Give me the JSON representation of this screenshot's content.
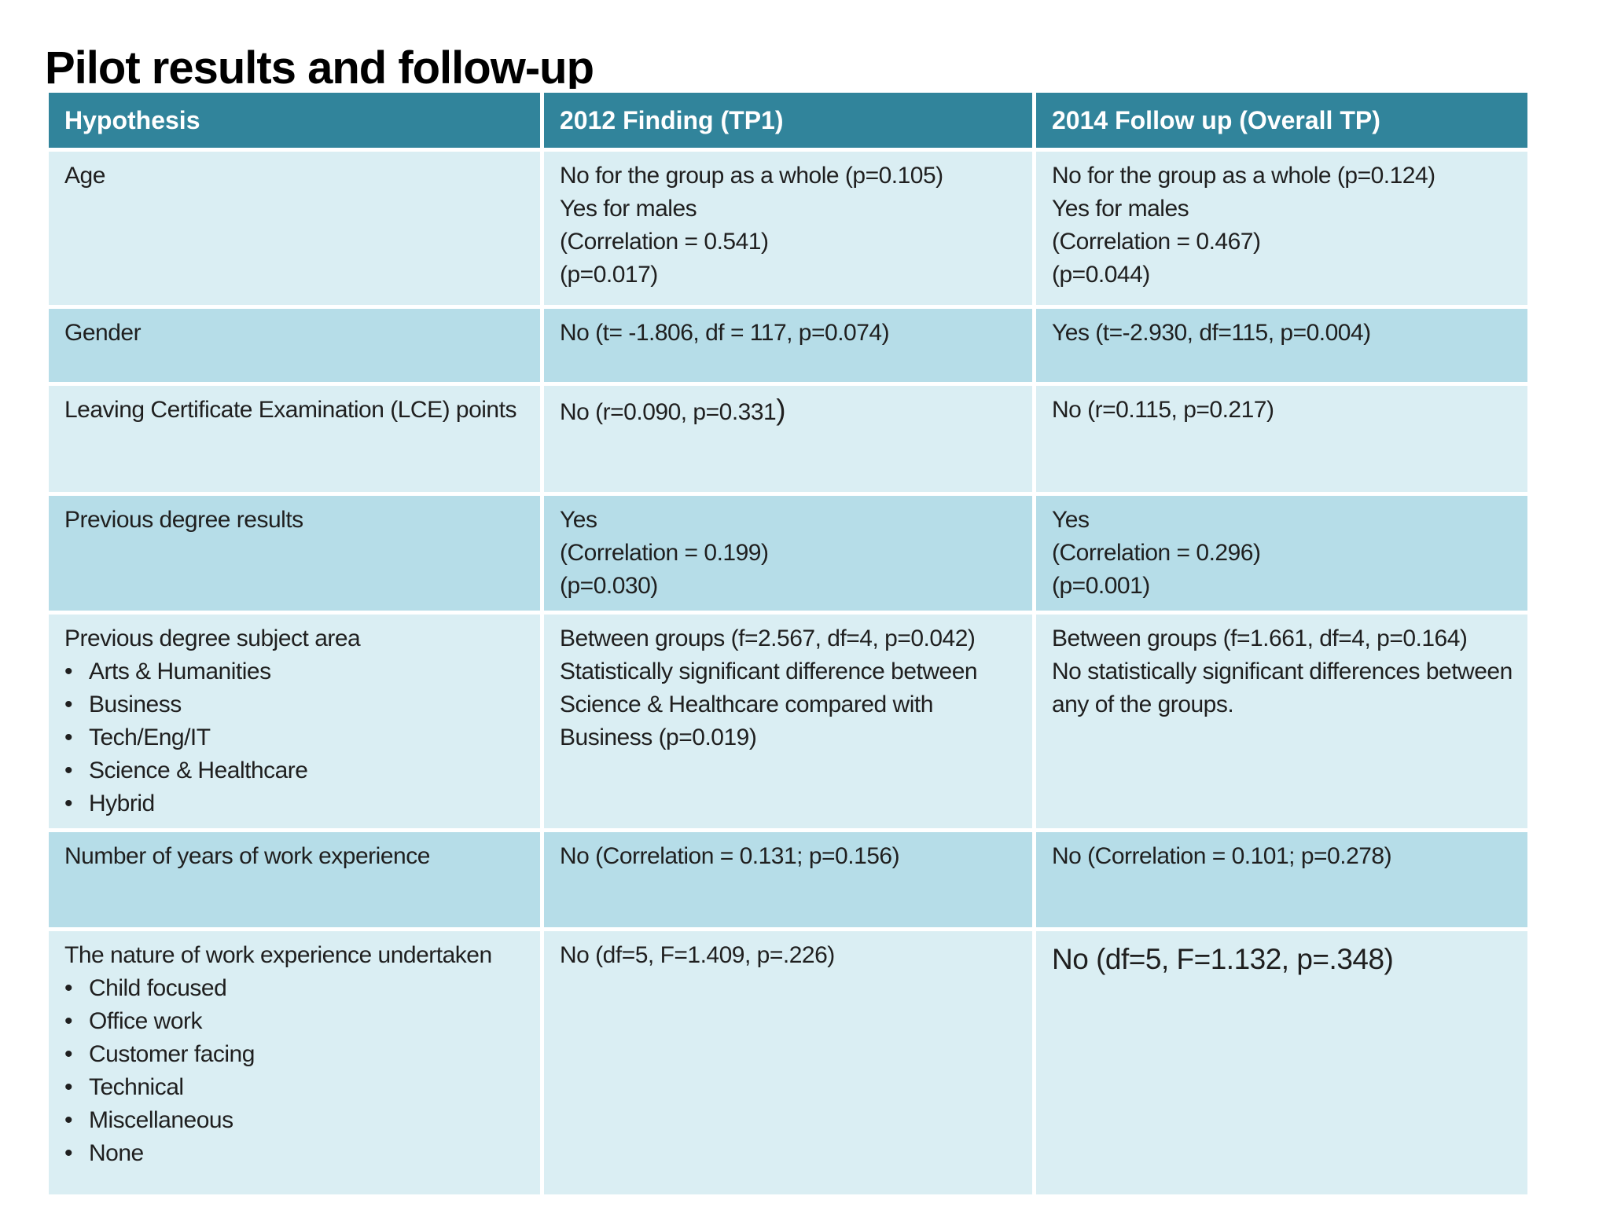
{
  "slide_title": "Pilot results and follow-up",
  "colors": {
    "header_bg": "#31849B",
    "header_text": "#FFFFFF",
    "row_light": "#DAEEF3",
    "row_medium": "#B6DDE8",
    "body_text": "#1F1F1F",
    "title_text": "#000000"
  },
  "table": {
    "columns": [
      "Hypothesis",
      "2012 Finding (TP1)",
      "2014 Follow up (Overall TP)"
    ],
    "rows": [
      {
        "hypothesis": {
          "title": "Age"
        },
        "finding_2012": {
          "lines": [
            "No for the group as a whole (p=0.105)",
            "Yes for males",
            "(Correlation = 0.541)",
            "(p=0.017)"
          ]
        },
        "follow_up_2014": {
          "lines": [
            "No for the group as a whole (p=0.124)",
            "Yes for males",
            "(Correlation = 0.467)",
            "(p=0.044)"
          ]
        }
      },
      {
        "hypothesis": {
          "title": "Gender"
        },
        "finding_2012": {
          "lines": [
            "No (t= -1.806, df = 117, p=0.074)"
          ]
        },
        "follow_up_2014": {
          "lines": [
            "Yes (t=-2.930, df=115, p=0.004)"
          ]
        }
      },
      {
        "hypothesis": {
          "title": "Leaving Certificate Examination (LCE) points"
        },
        "finding_2012": {
          "lines": [
            "No (r=0.090, p=0.331"
          ],
          "suffix_large": ")"
        },
        "follow_up_2014": {
          "lines": [
            "No (r=0.115, p=0.217)"
          ]
        }
      },
      {
        "hypothesis": {
          "title": "Previous degree results"
        },
        "finding_2012": {
          "lines": [
            "Yes",
            "(Correlation = 0.199)",
            "(p=0.030)"
          ]
        },
        "follow_up_2014": {
          "lines": [
            "Yes",
            "(Correlation = 0.296)",
            "(p=0.001)"
          ]
        }
      },
      {
        "hypothesis": {
          "title": "Previous degree subject area",
          "bullets": [
            "Arts & Humanities",
            "Business",
            "Tech/Eng/IT",
            "Science & Healthcare",
            "Hybrid"
          ]
        },
        "finding_2012": {
          "lines": [
            "Between groups (f=2.567, df=4, p=0.042)",
            "Statistically significant difference between Science & Healthcare compared with Business (p=0.019)"
          ]
        },
        "follow_up_2014": {
          "lines": [
            "Between groups (f=1.661, df=4, p=0.164)",
            "No statistically significant differences between any of the groups."
          ]
        }
      },
      {
        "hypothesis": {
          "title": "Number of years of work experience"
        },
        "finding_2012": {
          "lines": [
            "No (Correlation = 0.131; p=0.156)"
          ]
        },
        "follow_up_2014": {
          "lines": [
            "No (Correlation = 0.101; p=0.278)"
          ]
        }
      },
      {
        "hypothesis": {
          "title": "The nature of work experience undertaken",
          "bullets": [
            "Child focused",
            "Office work",
            "Customer facing",
            "Technical",
            "Miscellaneous",
            "None"
          ]
        },
        "finding_2012": {
          "lines": [
            "No (df=5, F=1.409, p=.226)"
          ]
        },
        "follow_up_2014": {
          "lines": [
            "No (df=5, F=1.132, p=.348)"
          ]
        }
      }
    ]
  }
}
